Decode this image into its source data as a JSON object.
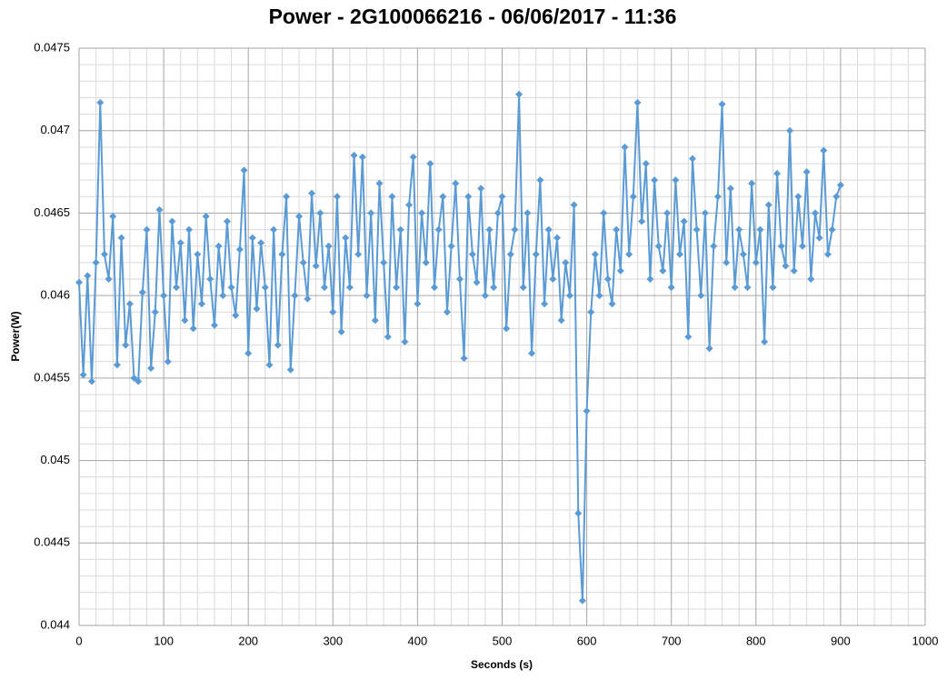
{
  "chart_data": {
    "type": "line",
    "title": "Power - 2G100066216 - 06/06/2017 - 11:36",
    "xlabel": "Seconds (s)",
    "ylabel": "Power(W)",
    "color": "#5b9bd5",
    "marker": "diamond",
    "grid": true,
    "minor_grid": 5,
    "xlim": [
      0,
      1000
    ],
    "xticks": [
      0,
      100,
      200,
      300,
      400,
      500,
      600,
      700,
      800,
      900,
      1000
    ],
    "ylim": [
      0.044,
      0.0475
    ],
    "yticks": [
      0.044,
      0.0445,
      0.045,
      0.0455,
      0.046,
      0.0465,
      0.047,
      0.0475
    ],
    "x": [
      0,
      5,
      10,
      15,
      20,
      25,
      30,
      35,
      40,
      45,
      50,
      55,
      60,
      65,
      70,
      75,
      80,
      85,
      90,
      95,
      100,
      105,
      110,
      115,
      120,
      125,
      130,
      135,
      140,
      145,
      150,
      155,
      160,
      165,
      170,
      175,
      180,
      185,
      190,
      195,
      200,
      205,
      210,
      215,
      220,
      225,
      230,
      235,
      240,
      245,
      250,
      255,
      260,
      265,
      270,
      275,
      280,
      285,
      290,
      295,
      300,
      305,
      310,
      315,
      320,
      325,
      330,
      335,
      340,
      345,
      350,
      355,
      360,
      365,
      370,
      375,
      380,
      385,
      390,
      395,
      400,
      405,
      410,
      415,
      420,
      425,
      430,
      435,
      440,
      445,
      450,
      455,
      460,
      465,
      470,
      475,
      480,
      485,
      490,
      495,
      500,
      505,
      510,
      515,
      520,
      525,
      530,
      535,
      540,
      545,
      550,
      555,
      560,
      565,
      570,
      575,
      580,
      585,
      590,
      595,
      600,
      605,
      610,
      615,
      620,
      625,
      630,
      635,
      640,
      645,
      650,
      655,
      660,
      665,
      670,
      675,
      680,
      685,
      690,
      695,
      700,
      705,
      710,
      715,
      720,
      725,
      730,
      735,
      740,
      745,
      750,
      755,
      760,
      765,
      770,
      775,
      780,
      785,
      790,
      795,
      800,
      805,
      810,
      815,
      820,
      825,
      830,
      835,
      840,
      845,
      850,
      855,
      860,
      865,
      870,
      875,
      880,
      885,
      890,
      895,
      900
    ],
    "values": [
      0.04608,
      0.04552,
      0.04612,
      0.04548,
      0.0462,
      0.04717,
      0.04625,
      0.0461,
      0.04648,
      0.04558,
      0.04635,
      0.0457,
      0.04595,
      0.0455,
      0.04548,
      0.04602,
      0.0464,
      0.04556,
      0.0459,
      0.04652,
      0.046,
      0.0456,
      0.04645,
      0.04605,
      0.04632,
      0.04585,
      0.0464,
      0.0458,
      0.04625,
      0.04595,
      0.04648,
      0.0461,
      0.04582,
      0.0463,
      0.046,
      0.04645,
      0.04605,
      0.04588,
      0.04628,
      0.04676,
      0.04565,
      0.04635,
      0.04592,
      0.04632,
      0.04605,
      0.04558,
      0.0464,
      0.0457,
      0.04625,
      0.0466,
      0.04555,
      0.046,
      0.04648,
      0.0462,
      0.04598,
      0.04662,
      0.04618,
      0.0465,
      0.04605,
      0.0463,
      0.0459,
      0.0466,
      0.04578,
      0.04635,
      0.04605,
      0.04685,
      0.04625,
      0.04684,
      0.046,
      0.0465,
      0.04585,
      0.04668,
      0.0462,
      0.04575,
      0.0466,
      0.04605,
      0.0464,
      0.04572,
      0.04655,
      0.04684,
      0.04595,
      0.0465,
      0.0462,
      0.0468,
      0.04605,
      0.0464,
      0.0466,
      0.0459,
      0.0463,
      0.04668,
      0.0461,
      0.04562,
      0.0466,
      0.04625,
      0.04608,
      0.04665,
      0.046,
      0.0464,
      0.04605,
      0.0465,
      0.0466,
      0.0458,
      0.04625,
      0.0464,
      0.04722,
      0.04605,
      0.0465,
      0.04565,
      0.04625,
      0.0467,
      0.04595,
      0.0464,
      0.0461,
      0.04635,
      0.04585,
      0.0462,
      0.046,
      0.04655,
      0.04468,
      0.04415,
      0.0453,
      0.0459,
      0.04625,
      0.046,
      0.0465,
      0.0461,
      0.04595,
      0.0464,
      0.04615,
      0.0469,
      0.04625,
      0.0466,
      0.04717,
      0.04645,
      0.0468,
      0.0461,
      0.0467,
      0.0463,
      0.04615,
      0.0465,
      0.04605,
      0.0467,
      0.04625,
      0.04645,
      0.04575,
      0.04683,
      0.0464,
      0.046,
      0.0465,
      0.04568,
      0.0463,
      0.0466,
      0.04716,
      0.0462,
      0.04665,
      0.04605,
      0.0464,
      0.04625,
      0.04605,
      0.04668,
      0.0462,
      0.0464,
      0.04572,
      0.04655,
      0.04605,
      0.04674,
      0.0463,
      0.04618,
      0.047,
      0.04615,
      0.0466,
      0.0463,
      0.04675,
      0.0461,
      0.0465,
      0.04635,
      0.04688,
      0.04625,
      0.0464,
      0.0466,
      0.04667
    ]
  }
}
